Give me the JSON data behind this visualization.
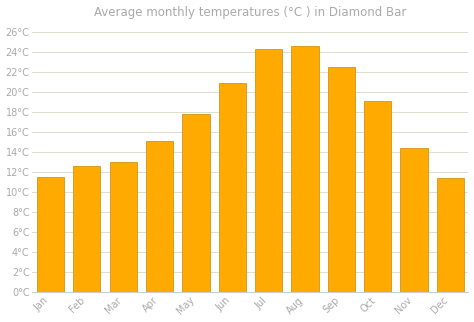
{
  "title": "Average monthly temperatures (°C ) in Diamond Bar",
  "months": [
    "Jan",
    "Feb",
    "Mar",
    "Apr",
    "May",
    "Jun",
    "Jul",
    "Aug",
    "Sep",
    "Oct",
    "Nov",
    "Dec"
  ],
  "values": [
    11.5,
    12.6,
    13.0,
    15.1,
    17.8,
    20.9,
    24.3,
    24.6,
    22.5,
    19.1,
    14.4,
    11.4
  ],
  "bar_color": "#FFAA00",
  "bar_edge_color": "#CC8800",
  "ylim": [
    0,
    27
  ],
  "yticks": [
    0,
    2,
    4,
    6,
    8,
    10,
    12,
    14,
    16,
    18,
    20,
    22,
    24,
    26
  ],
  "background_color": "#FFFFFF",
  "grid_color": "#DDDDCC",
  "title_fontsize": 8.5,
  "tick_fontsize": 7,
  "tick_color": "#AAAAAA",
  "title_color": "#AAAAAA",
  "bar_width": 0.75
}
